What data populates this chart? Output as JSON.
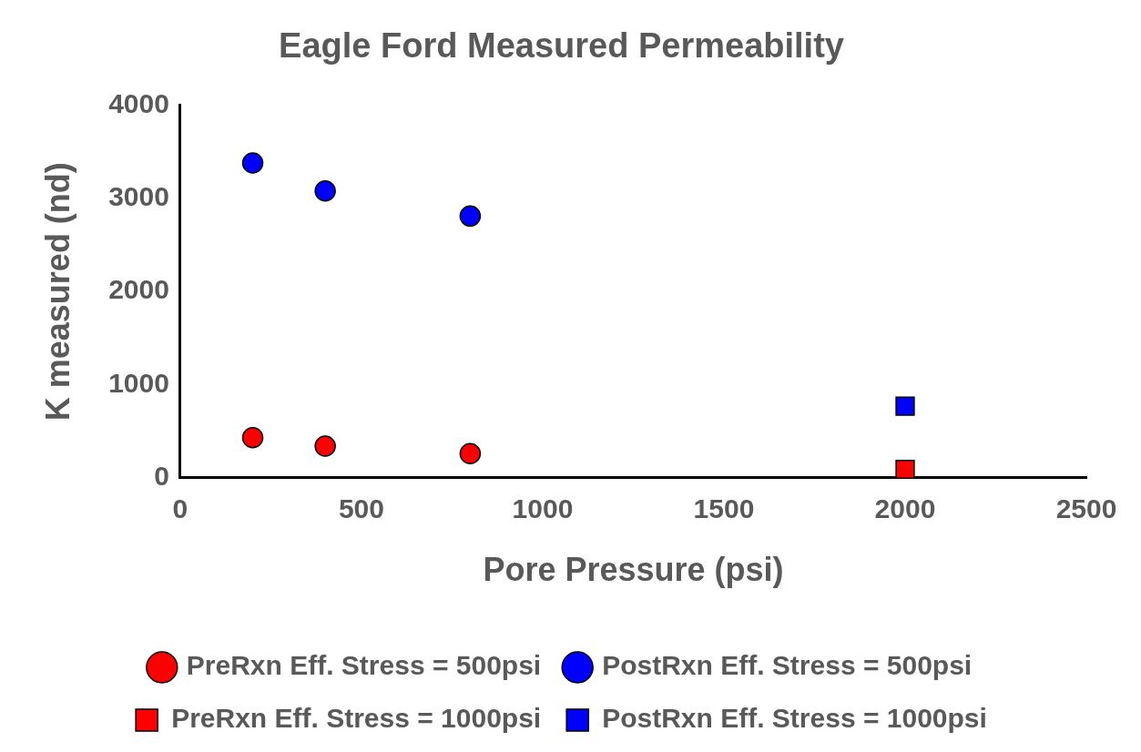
{
  "chart_data": {
    "type": "scatter",
    "title": "Eagle Ford Measured Permeability",
    "xlabel": "Pore Pressure (psi)",
    "ylabel": "K measured (nd)",
    "xlim": [
      0,
      2500
    ],
    "xticks": [
      0,
      500,
      1000,
      1500,
      2000,
      2500
    ],
    "ylim": [
      0,
      4000
    ],
    "yticks": [
      0,
      1000,
      2000,
      3000,
      4000
    ],
    "grid": false,
    "legend": "bottom",
    "series": [
      {
        "name": "PreRxn Eff. Stress = 500psi",
        "color": "#ff0000",
        "marker": "circle",
        "x": [
          200,
          400,
          800
        ],
        "values": [
          430,
          340,
          260
        ]
      },
      {
        "name": "PostRxn Eff. Stress = 500psi",
        "color": "#0000ff",
        "marker": "circle",
        "x": [
          200,
          400,
          800
        ],
        "values": [
          3380,
          3080,
          2810
        ]
      },
      {
        "name": "PreRxn Eff. Stress = 1000psi",
        "color": "#ff0000",
        "marker": "square",
        "x": [
          2000
        ],
        "values": [
          90
        ]
      },
      {
        "name": "PostRxn Eff. Stress = 1000psi",
        "color": "#0000ff",
        "marker": "square",
        "x": [
          2000
        ],
        "values": [
          770
        ]
      }
    ]
  }
}
